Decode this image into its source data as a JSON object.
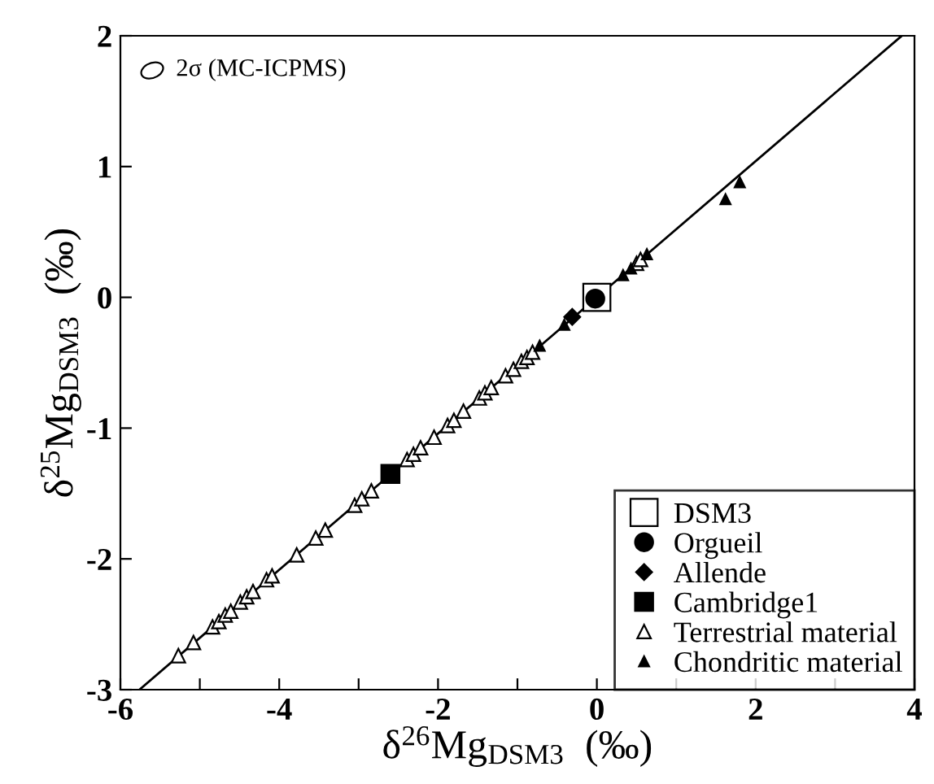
{
  "chart_data": {
    "type": "scatter",
    "xlabel": "δ$^{26}$Mg$_{DSM3}$  (‰)",
    "ylabel": "δ$^{25}$Mg$_{DSM3}$  (‰)",
    "annotations": [
      "2σ (MC-ICPMS)"
    ],
    "xlim": [
      -6,
      4
    ],
    "ylim": [
      -3,
      2
    ],
    "xticks": [
      -6,
      {
        "value": -5,
        "label": null
      },
      -4,
      {
        "value": -3,
        "label": null
      },
      -2,
      {
        "value": -1,
        "label": null
      },
      0,
      {
        "value": 1,
        "label": null
      },
      2,
      {
        "value": 3,
        "label": null
      },
      4
    ],
    "yticks": [
      -3,
      -2,
      -1,
      0,
      1,
      2
    ],
    "grid": false,
    "legend": "bottom right",
    "series": [
      {
        "type": "line",
        "color": "#000000",
        "marker": "none",
        "x": [
          -5.76,
          3.84
        ],
        "values": [
          -3,
          2
        ]
      },
      {
        "name": "DSM3",
        "color": "#ffffff",
        "marker": "square",
        "x": [
          0
        ],
        "values": [
          0
        ]
      },
      {
        "name": "Orgueil",
        "color": "#000000",
        "marker": "circle",
        "x": [
          -0.02
        ],
        "values": [
          -0.01
        ]
      },
      {
        "name": "Allende",
        "color": "#000000",
        "marker": "diamond",
        "x": [
          -0.31
        ],
        "values": [
          -0.15
        ]
      },
      {
        "name": "Cambridge1",
        "color": "#000000",
        "marker": "square",
        "x": [
          -2.6
        ],
        "values": [
          -1.35
        ]
      },
      {
        "name": "Terrestrial material",
        "color": "#ffffff",
        "marker": "triangle",
        "x": [
          -5.27,
          -5.08,
          -4.84,
          -4.76,
          -4.68,
          -4.61,
          -4.49,
          -4.41,
          -4.33,
          -4.16,
          -4.09,
          -3.78,
          -3.54,
          -3.42,
          -3.05,
          -2.96,
          -2.84,
          -2.39,
          -2.31,
          -2.22,
          -2.05,
          -1.88,
          -1.8,
          -1.68,
          -1.48,
          -1.41,
          -1.33,
          -1.15,
          -1.05,
          -0.95,
          -0.88,
          -0.81,
          0.5,
          0.55
        ],
        "values": [
          -2.74,
          -2.64,
          -2.52,
          -2.48,
          -2.43,
          -2.4,
          -2.33,
          -2.29,
          -2.25,
          -2.16,
          -2.13,
          -1.97,
          -1.84,
          -1.78,
          -1.59,
          -1.54,
          -1.48,
          -1.24,
          -1.2,
          -1.15,
          -1.07,
          -0.98,
          -0.94,
          -0.87,
          -0.77,
          -0.73,
          -0.69,
          -0.6,
          -0.55,
          -0.49,
          -0.46,
          -0.42,
          0.26,
          0.29
        ]
      },
      {
        "name": "Chondritic material",
        "color": "#000000",
        "marker": "triangle",
        "x": [
          -0.72,
          -0.41,
          0.33,
          0.43,
          0.63,
          1.62,
          1.8
        ],
        "values": [
          -0.37,
          -0.21,
          0.17,
          0.22,
          0.33,
          0.75,
          0.88
        ]
      }
    ]
  }
}
